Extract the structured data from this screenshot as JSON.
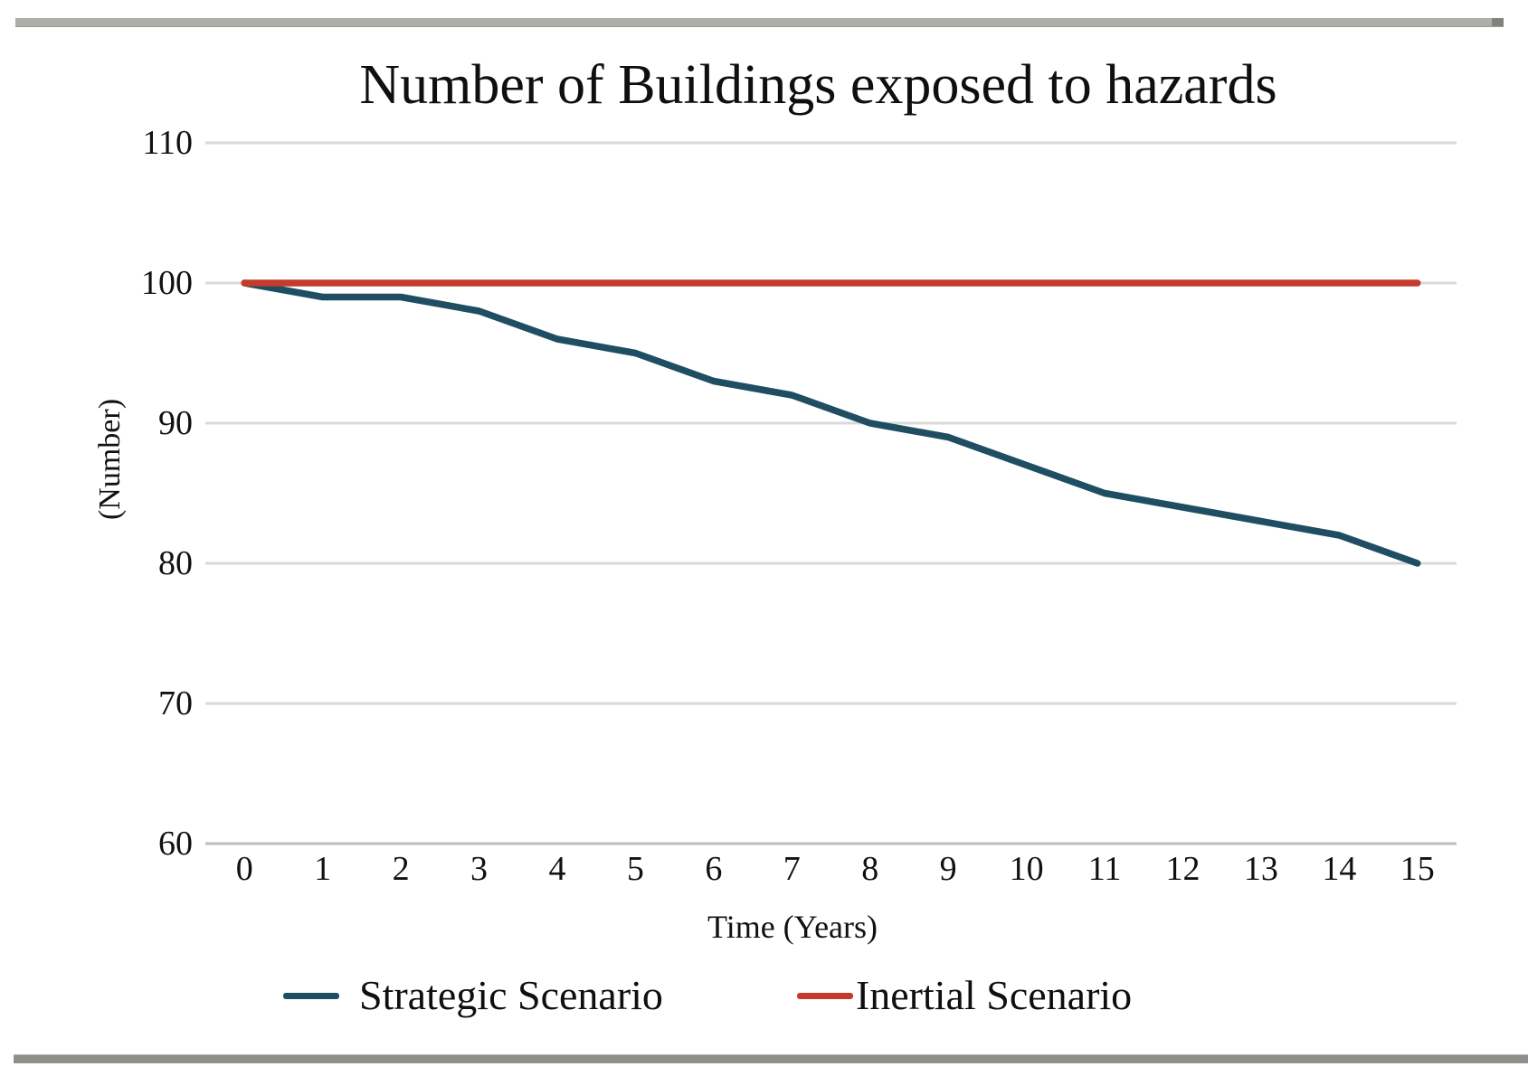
{
  "chart_data": {
    "type": "line",
    "title": "Number of Buildings exposed to hazards",
    "xlabel": "Time (Years)",
    "ylabel": "(Number)",
    "x": [
      0,
      1,
      2,
      3,
      4,
      5,
      6,
      7,
      8,
      9,
      10,
      11,
      12,
      13,
      14,
      15
    ],
    "yticks": [
      60,
      70,
      80,
      90,
      100,
      110
    ],
    "ylim": [
      60,
      110
    ],
    "grid": true,
    "legend_position": "bottom",
    "series": [
      {
        "name": "Strategic Scenario",
        "color": "#1F4E63",
        "values": [
          100,
          99,
          99,
          98,
          96,
          95,
          93,
          92,
          90,
          89,
          87,
          85,
          84,
          83,
          82,
          80
        ]
      },
      {
        "name": "Inertial Scenario",
        "color": "#C43B2B",
        "values": [
          100,
          100,
          100,
          100,
          100,
          100,
          100,
          100,
          100,
          100,
          100,
          100,
          100,
          100,
          100,
          100
        ]
      }
    ],
    "colors": {
      "gridline": "#d9d9d9",
      "axis_line": "#bdbdb8",
      "text": "#111111"
    }
  }
}
